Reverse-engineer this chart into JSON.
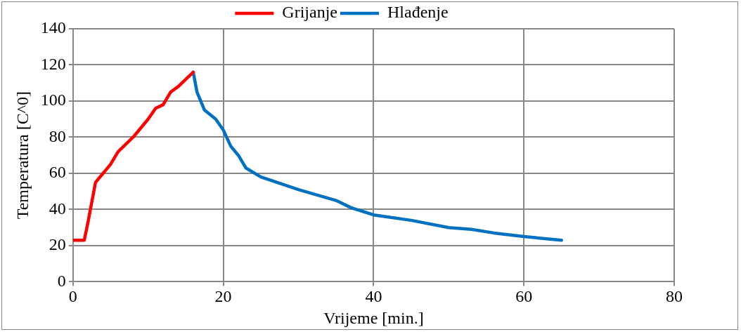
{
  "chart_data": {
    "type": "line",
    "xlabel": "Vrijeme [min.]",
    "ylabel": "Temperatura [C^0]",
    "xlim": [
      0,
      80
    ],
    "xticks": [
      0,
      20,
      40,
      60,
      80
    ],
    "ylim": [
      0,
      140
    ],
    "yticks": [
      0,
      20,
      40,
      60,
      80,
      100,
      120,
      140
    ],
    "grid": true,
    "legend": "top",
    "marker": "none",
    "line_style": "solid",
    "series": [
      {
        "name": "Grijanje",
        "color": "#ff0000",
        "x": [
          0,
          1.5,
          2,
          3,
          4,
          5,
          6,
          8,
          10,
          11,
          12,
          13,
          14,
          16
        ],
        "values": [
          23,
          23,
          33,
          55,
          60,
          65,
          72,
          80,
          90,
          96,
          98,
          105,
          108,
          116
        ]
      },
      {
        "name": "Hlađenje",
        "color": "#0070c0",
        "x": [
          16,
          16.5,
          17.5,
          19,
          20,
          21,
          22,
          23,
          25,
          30,
          35,
          37,
          40,
          45,
          50,
          53,
          56,
          60,
          65
        ],
        "values": [
          116,
          105,
          95,
          90,
          84,
          75,
          70,
          63,
          58,
          51,
          45,
          41,
          37,
          34,
          30,
          29,
          27,
          25,
          23
        ]
      }
    ]
  }
}
